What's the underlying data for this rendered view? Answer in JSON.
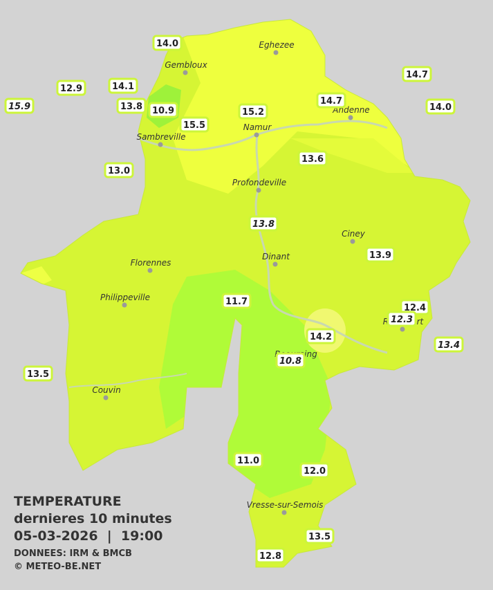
{
  "legend": {
    "title": "TEMPERATURE",
    "subtitle": "dernieres 10 minutes",
    "datetime": "05-03-2026  |  19:00",
    "source": "DONNEES: IRM & BMCB",
    "copyright": "© METEO-BE.NET"
  },
  "cities": [
    {
      "name": "Eghezee"
    },
    {
      "name": "Gembloux"
    },
    {
      "name": "Andenne"
    },
    {
      "name": "Namur"
    },
    {
      "name": "Sambreville"
    },
    {
      "name": "Profondeville"
    },
    {
      "name": "Ciney"
    },
    {
      "name": "Dinant"
    },
    {
      "name": "Florennes"
    },
    {
      "name": "Philippeville"
    },
    {
      "name": "Rochefort"
    },
    {
      "name": "Beauraing"
    },
    {
      "name": "Couvin"
    },
    {
      "name": "Vresse-sur-Semois"
    }
  ],
  "stations": [
    {
      "value": "14.0"
    },
    {
      "value": "12.9"
    },
    {
      "value": "14.1"
    },
    {
      "value": "15.9",
      "italic": true
    },
    {
      "value": "13.8"
    },
    {
      "value": "10.9"
    },
    {
      "value": "15.5"
    },
    {
      "value": "15.2"
    },
    {
      "value": "14.7"
    },
    {
      "value": "14.7"
    },
    {
      "value": "14.0"
    },
    {
      "value": "13.0"
    },
    {
      "value": "13.6"
    },
    {
      "value": "13.8",
      "italic": true
    },
    {
      "value": "13.9"
    },
    {
      "value": "11.7"
    },
    {
      "value": "12.4"
    },
    {
      "value": "12.3",
      "italic": true
    },
    {
      "value": "14.2"
    },
    {
      "value": "13.4",
      "italic": true
    },
    {
      "value": "10.8",
      "italic": true
    },
    {
      "value": "13.5"
    },
    {
      "value": "11.0"
    },
    {
      "value": "12.0"
    },
    {
      "value": "13.5"
    },
    {
      "value": "12.8"
    }
  ]
}
